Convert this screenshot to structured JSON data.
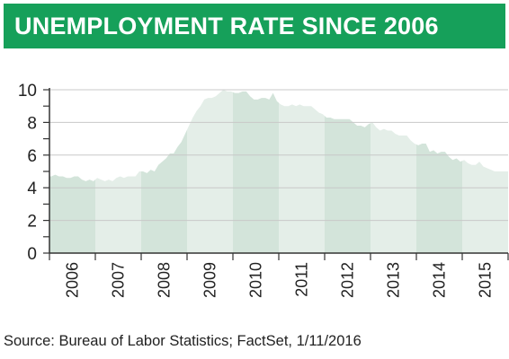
{
  "title": "UNEMPLOYMENT RATE SINCE 2006",
  "source": "Source: Bureau of Labor Statistics; FactSet, 1/11/2016",
  "colors": {
    "brand": "#16a05a",
    "band_dark": "#d3e4da",
    "band_light": "#e4eee8",
    "gridline": "#c8c8c8",
    "axis": "#333333"
  },
  "chart_data": {
    "type": "area",
    "title": "UNEMPLOYMENT RATE SINCE 2006",
    "xlabel": "",
    "ylabel": "",
    "ylim": [
      0,
      10
    ],
    "yticks": [
      0,
      2,
      4,
      6,
      8,
      10
    ],
    "grid": true,
    "xtick_labels": [
      "2006",
      "2007",
      "2008",
      "2009",
      "2010",
      "2011",
      "2012",
      "2013",
      "2014",
      "2015"
    ],
    "series": [
      {
        "frequency": "monthly",
        "start": "2006-01",
        "values": [
          4.7,
          4.8,
          4.7,
          4.7,
          4.6,
          4.6,
          4.7,
          4.7,
          4.5,
          4.4,
          4.5,
          4.4,
          4.6,
          4.5,
          4.4,
          4.5,
          4.4,
          4.6,
          4.7,
          4.6,
          4.7,
          4.7,
          4.7,
          5.0,
          5.0,
          4.9,
          5.1,
          5.0,
          5.4,
          5.6,
          5.8,
          6.1,
          6.1,
          6.5,
          6.8,
          7.3,
          7.8,
          8.3,
          8.7,
          9.0,
          9.4,
          9.5,
          9.5,
          9.6,
          9.8,
          10.0,
          9.9,
          9.9,
          9.8,
          9.8,
          9.9,
          9.9,
          9.6,
          9.4,
          9.4,
          9.5,
          9.5,
          9.4,
          9.8,
          9.3,
          9.1,
          9.0,
          9.0,
          9.1,
          9.0,
          9.1,
          9.0,
          9.0,
          9.0,
          8.8,
          8.6,
          8.5,
          8.3,
          8.3,
          8.2,
          8.2,
          8.2,
          8.2,
          8.2,
          8.0,
          7.8,
          7.8,
          7.7,
          7.9,
          8.0,
          7.7,
          7.5,
          7.6,
          7.5,
          7.5,
          7.3,
          7.2,
          7.2,
          7.2,
          6.9,
          6.7,
          6.6,
          6.7,
          6.7,
          6.2,
          6.3,
          6.1,
          6.2,
          6.2,
          5.9,
          5.7,
          5.8,
          5.6,
          5.7,
          5.5,
          5.4,
          5.4,
          5.6,
          5.3,
          5.2,
          5.1,
          5.0,
          5.0,
          5.0,
          5.0
        ]
      }
    ]
  }
}
